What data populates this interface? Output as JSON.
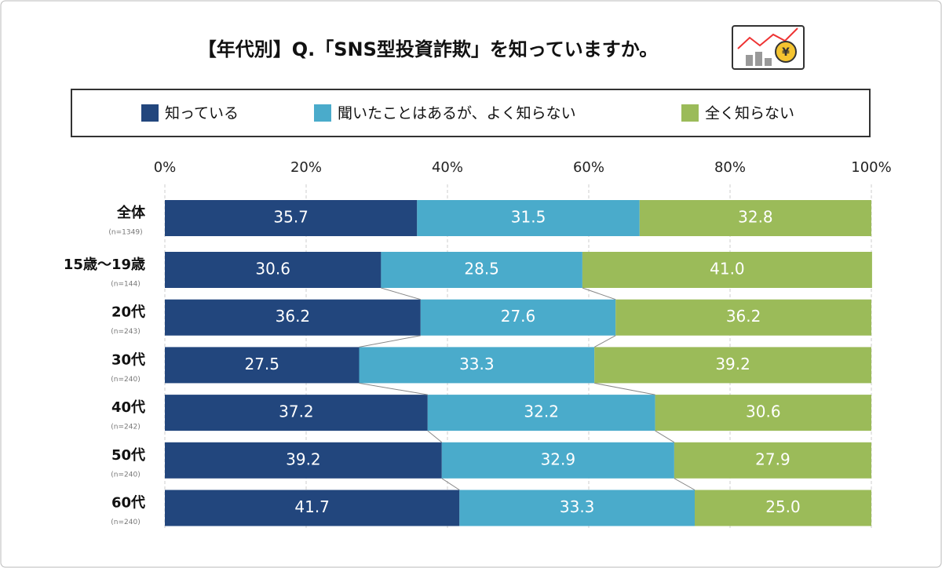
{
  "chart_data": {
    "type": "stacked-bar-horizontal",
    "title": "【年代別】Q.「SNS型投資詐欺」を知っていますか。",
    "categories": [
      "全体",
      "15歳〜19歳",
      "20代",
      "30代",
      "40代",
      "50代",
      "60代"
    ],
    "category_notes": [
      "(n=1349)",
      "(n=144)",
      "(n=243)",
      "(n=240)",
      "(n=242)",
      "(n=240)",
      "(n=240)"
    ],
    "series": [
      {
        "name": "知っている",
        "color": "#22467d",
        "values": [
          35.7,
          30.6,
          36.2,
          27.5,
          37.2,
          39.2,
          41.7
        ],
        "value_labels": [
          "35.7",
          "30.6",
          "36.2",
          "27.5",
          "37.2",
          "39.2",
          "41.7"
        ]
      },
      {
        "name": "聞いたことはあるが、よく知らない",
        "color": "#4aabcb",
        "values": [
          31.5,
          28.5,
          27.6,
          33.3,
          32.2,
          32.9,
          33.3
        ],
        "value_labels": [
          "31.5",
          "28.5",
          "27.6",
          "33.3",
          "32.2",
          "32.9",
          "33.3"
        ]
      },
      {
        "name": "全く知らない",
        "color": "#9bbb59",
        "values": [
          32.8,
          41.0,
          36.2,
          39.2,
          30.6,
          27.9,
          25.0
        ],
        "value_labels": [
          "32.8",
          "41.0",
          "36.2",
          "39.2",
          "30.6",
          "27.9",
          "25.0"
        ]
      }
    ],
    "xlim": [
      0,
      100
    ],
    "xticks": [
      {
        "value": 0,
        "label": "0%"
      },
      {
        "value": 20,
        "label": "20%"
      },
      {
        "value": 40,
        "label": "40%"
      },
      {
        "value": 60,
        "label": "60%"
      },
      {
        "value": 80,
        "label": "80%"
      },
      {
        "value": 100,
        "label": "100%"
      }
    ],
    "grid": true
  }
}
